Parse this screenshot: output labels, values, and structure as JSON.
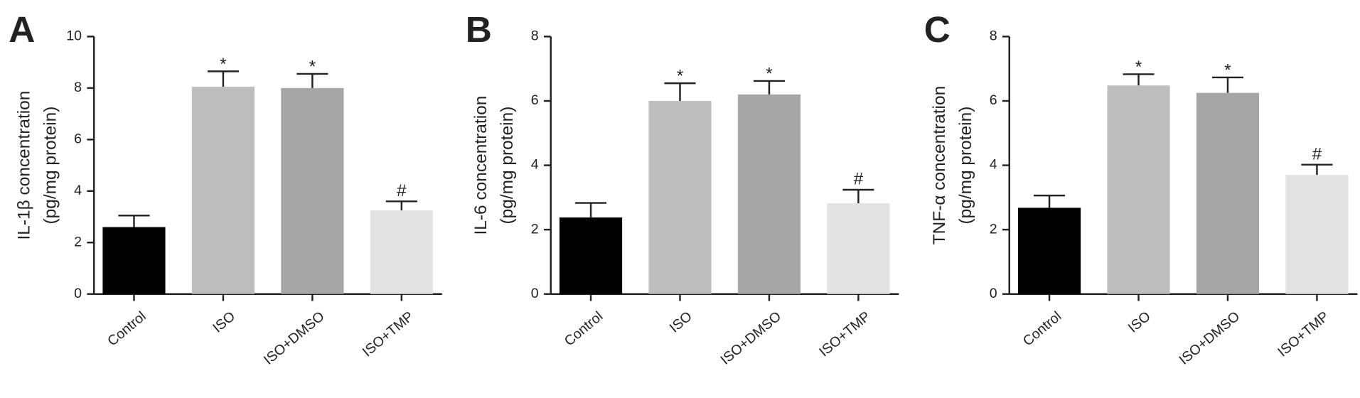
{
  "chart_data": [
    {
      "type": "bar",
      "panel": "A",
      "ylabel": [
        "IL-1β concentration",
        "(pg/mg protein)"
      ],
      "categories": [
        "Control",
        "ISO",
        "ISO+DMSO",
        "ISO+TMP"
      ],
      "values": [
        2.6,
        8.05,
        8.0,
        3.25
      ],
      "errors": [
        0.45,
        0.6,
        0.55,
        0.35
      ],
      "annotations": [
        null,
        "*",
        "*",
        "#"
      ],
      "colors": [
        "#000000",
        "#bdbdbd",
        "#a6a6a6",
        "#e3e3e3"
      ],
      "ylim": [
        0,
        10
      ],
      "yticks": [
        0,
        2,
        4,
        6,
        8,
        10
      ]
    },
    {
      "type": "bar",
      "panel": "B",
      "ylabel": [
        "IL-6 concentration",
        "(pg/mg protein)"
      ],
      "categories": [
        "Control",
        "ISO",
        "ISO+DMSO",
        "ISO+TMP"
      ],
      "values": [
        2.38,
        6.0,
        6.2,
        2.82
      ],
      "errors": [
        0.45,
        0.55,
        0.42,
        0.42
      ],
      "annotations": [
        null,
        "*",
        "*",
        "#"
      ],
      "colors": [
        "#000000",
        "#bdbdbd",
        "#a6a6a6",
        "#e3e3e3"
      ],
      "ylim": [
        0,
        8
      ],
      "yticks": [
        0,
        2,
        4,
        6,
        8
      ]
    },
    {
      "type": "bar",
      "panel": "C",
      "ylabel": [
        "TNF-α concentration",
        "(pg/mg protein)"
      ],
      "categories": [
        "Control",
        "ISO",
        "ISO+DMSO",
        "ISO+TMP"
      ],
      "values": [
        2.68,
        6.48,
        6.25,
        3.7
      ],
      "errors": [
        0.38,
        0.35,
        0.48,
        0.32
      ],
      "annotations": [
        null,
        "*",
        "*",
        "#"
      ],
      "colors": [
        "#000000",
        "#bdbdbd",
        "#a6a6a6",
        "#e3e3e3"
      ],
      "ylim": [
        0,
        8
      ],
      "yticks": [
        0,
        2,
        4,
        6,
        8
      ]
    }
  ]
}
